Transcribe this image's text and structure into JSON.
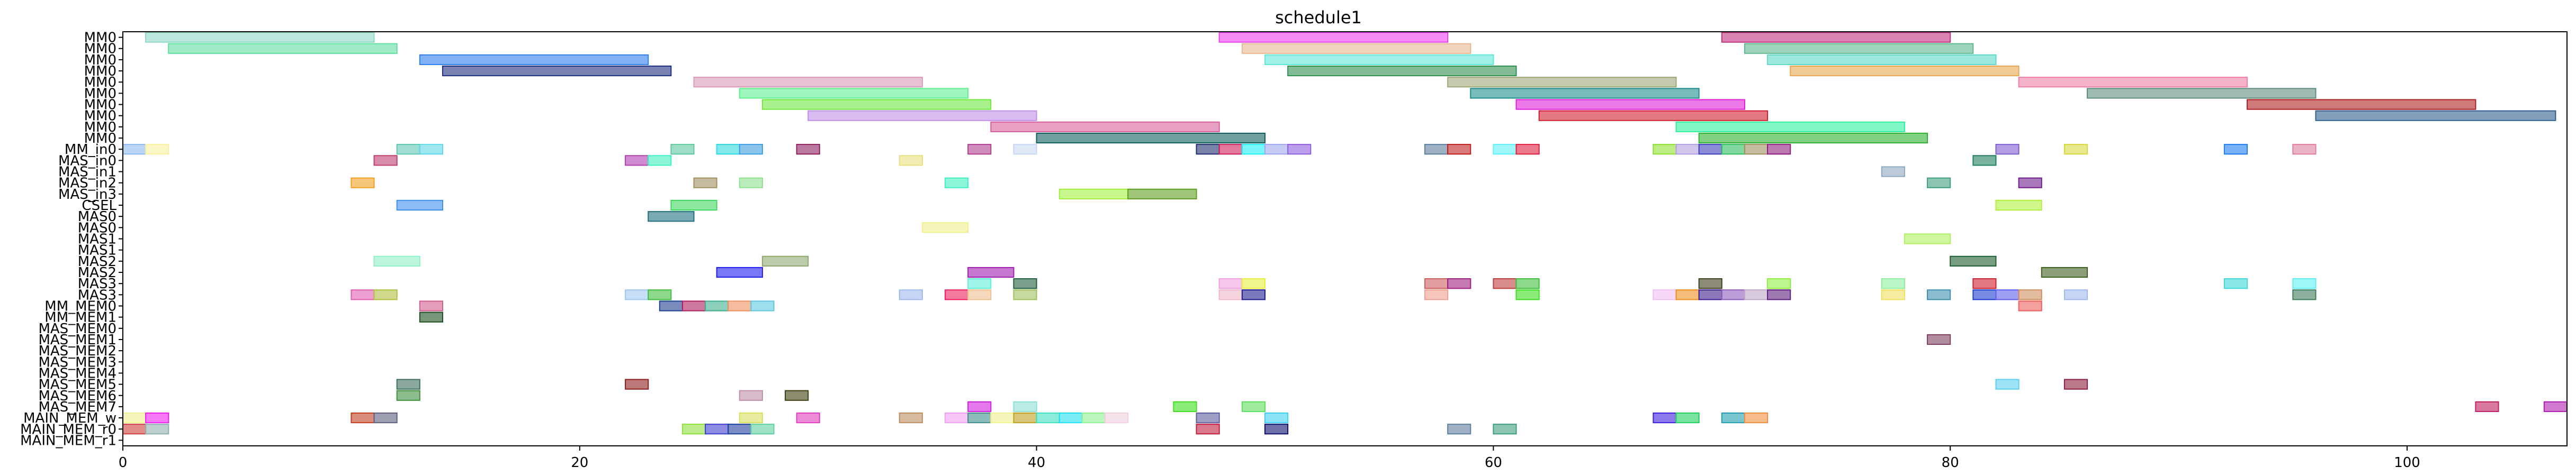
{
  "chart_data": {
    "type": "gantt",
    "title": "schedule1",
    "xlim": [
      0,
      107
    ],
    "xticks": [
      0,
      20,
      40,
      60,
      80,
      100
    ],
    "xlabel": "",
    "ylabel": "",
    "rows": [
      "MM0",
      "MM0",
      "MM0",
      "MM0",
      "MM0",
      "MM0",
      "MM0",
      "MM0",
      "MM0",
      "MM0",
      "MM_in0",
      "MAS_in0",
      "MAS_in1",
      "MAS_in2",
      "MAS_in3",
      "CSEL",
      "MAS0",
      "MAS0",
      "MAS1",
      "MAS1",
      "MAS2",
      "MAS2",
      "MAS3",
      "MAS3",
      "MM_MEM0",
      "MM_MEM1",
      "MAS_MEM0",
      "MAS_MEM1",
      "MAS_MEM2",
      "MAS_MEM3",
      "MAS_MEM4",
      "MAS_MEM5",
      "MAS_MEM6",
      "MAS_MEM7",
      "MAIN_MEM_w",
      "MAIN_MEM_r0",
      "MAIN_MEM_r1"
    ],
    "bars": [
      {
        "row": 0,
        "start": 1.0,
        "end": 11.0,
        "color": "#8fd8c8"
      },
      {
        "row": 1,
        "start": 2.0,
        "end": 12.0,
        "color": "#5fe0a0"
      },
      {
        "row": 2,
        "start": 13.0,
        "end": 23.0,
        "color": "#2f7ff0"
      },
      {
        "row": 3,
        "start": 14.0,
        "end": 24.0,
        "color": "#1f2f7f"
      },
      {
        "row": 4,
        "start": 25.0,
        "end": 35.0,
        "color": "#d89ab8"
      },
      {
        "row": 5,
        "start": 27.0,
        "end": 37.0,
        "color": "#5ff08f"
      },
      {
        "row": 6,
        "start": 28.0,
        "end": 38.0,
        "color": "#6fe83f"
      },
      {
        "row": 7,
        "start": 30.0,
        "end": 40.0,
        "color": "#c08fe8"
      },
      {
        "row": 8,
        "start": 38.0,
        "end": 48.0,
        "color": "#d8609f"
      },
      {
        "row": 9,
        "start": 40.0,
        "end": 50.0,
        "color": "#0f5f5f"
      },
      {
        "row": 0,
        "start": 48.0,
        "end": 58.0,
        "color": "#f03ff0"
      },
      {
        "row": 1,
        "start": 49.0,
        "end": 59.0,
        "color": "#e8b890"
      },
      {
        "row": 2,
        "start": 50.0,
        "end": 60.0,
        "color": "#5fe8d8"
      },
      {
        "row": 3,
        "start": 51.0,
        "end": 61.0,
        "color": "#2f8f4f"
      },
      {
        "row": 4,
        "start": 58.0,
        "end": 68.0,
        "color": "#a0a878"
      },
      {
        "row": 5,
        "start": 59.0,
        "end": 69.0,
        "color": "#1f8f8f"
      },
      {
        "row": 6,
        "start": 61.0,
        "end": 71.0,
        "color": "#e020d8"
      },
      {
        "row": 7,
        "start": 62.0,
        "end": 72.0,
        "color": "#d01f2f"
      },
      {
        "row": 8,
        "start": 68.0,
        "end": 78.0,
        "color": "#2ff0a0"
      },
      {
        "row": 9,
        "start": 69.0,
        "end": 79.0,
        "color": "#2fb02f"
      },
      {
        "row": 0,
        "start": 70.0,
        "end": 80.0,
        "color": "#c0307f"
      },
      {
        "row": 1,
        "start": 71.0,
        "end": 81.0,
        "color": "#5fb88f"
      },
      {
        "row": 2,
        "start": 72.0,
        "end": 82.0,
        "color": "#5fd8c8"
      },
      {
        "row": 3,
        "start": 73.0,
        "end": 83.0,
        "color": "#e8a850"
      },
      {
        "row": 4,
        "start": 83.0,
        "end": 93.0,
        "color": "#f07fa8"
      },
      {
        "row": 5,
        "start": 86.0,
        "end": 96.0,
        "color": "#5f8f7f"
      },
      {
        "row": 6,
        "start": 93.0,
        "end": 103.0,
        "color": "#b01f1f"
      },
      {
        "row": 7,
        "start": 96.0,
        "end": 106.5,
        "color": "#2f5f8f"
      },
      {
        "row": 10,
        "start": 0.0,
        "end": 1.0,
        "color": "#8fb8f0"
      },
      {
        "row": 10,
        "start": 1.0,
        "end": 2.0,
        "color": "#f8f0a0"
      },
      {
        "row": 10,
        "start": 12.0,
        "end": 13.0,
        "color": "#5fc8b0"
      },
      {
        "row": 10,
        "start": 13.0,
        "end": 14.0,
        "color": "#5fd8e8"
      },
      {
        "row": 10,
        "start": 24.0,
        "end": 25.0,
        "color": "#5fc8a0"
      },
      {
        "row": 10,
        "start": 26.0,
        "end": 27.0,
        "color": "#2fd8e0"
      },
      {
        "row": 10,
        "start": 27.0,
        "end": 28.0,
        "color": "#3f9fe0"
      },
      {
        "row": 10,
        "start": 29.5,
        "end": 30.5,
        "color": "#8f1f5f"
      },
      {
        "row": 10,
        "start": 37.0,
        "end": 38.0,
        "color": "#b03f8f"
      },
      {
        "row": 10,
        "start": 39.0,
        "end": 40.0,
        "color": "#c8d8f0"
      },
      {
        "row": 10,
        "start": 47.0,
        "end": 48.0,
        "color": "#1f2f6f"
      },
      {
        "row": 10,
        "start": 48.0,
        "end": 49.0,
        "color": "#d01f5f"
      },
      {
        "row": 10,
        "start": 49.0,
        "end": 50.0,
        "color": "#1ff0f8"
      },
      {
        "row": 10,
        "start": 50.0,
        "end": 51.0,
        "color": "#a0a8f0"
      },
      {
        "row": 10,
        "start": 51.0,
        "end": 52.0,
        "color": "#8f5fe0"
      },
      {
        "row": 10,
        "start": 57.0,
        "end": 58.0,
        "color": "#5f7f9f"
      },
      {
        "row": 10,
        "start": 58.0,
        "end": 59.0,
        "color": "#c01f1f"
      },
      {
        "row": 10,
        "start": 60.0,
        "end": 61.0,
        "color": "#5ff0f8"
      },
      {
        "row": 10,
        "start": 61.0,
        "end": 62.0,
        "color": "#e01f3f"
      },
      {
        "row": 10,
        "start": 67.0,
        "end": 68.0,
        "color": "#8fe02f"
      },
      {
        "row": 10,
        "start": 68.0,
        "end": 69.0,
        "color": "#b0a0e0"
      },
      {
        "row": 10,
        "start": 69.0,
        "end": 70.0,
        "color": "#3f3fc0"
      },
      {
        "row": 10,
        "start": 70.0,
        "end": 71.0,
        "color": "#2fc05f"
      },
      {
        "row": 10,
        "start": 71.0,
        "end": 72.0,
        "color": "#a08f5f"
      },
      {
        "row": 10,
        "start": 72.0,
        "end": 73.0,
        "color": "#8f1f7f"
      },
      {
        "row": 10,
        "start": 82.0,
        "end": 83.0,
        "color": "#7f5fd0"
      },
      {
        "row": 10,
        "start": 85.0,
        "end": 86.0,
        "color": "#d8d83f"
      },
      {
        "row": 10,
        "start": 92.0,
        "end": 93.0,
        "color": "#1f7ff0"
      },
      {
        "row": 10,
        "start": 95.0,
        "end": 96.0,
        "color": "#e07fa0"
      },
      {
        "row": 11,
        "start": 11.0,
        "end": 12.0,
        "color": "#c03f6f"
      },
      {
        "row": 11,
        "start": 22.0,
        "end": 23.0,
        "color": "#b03fb0"
      },
      {
        "row": 11,
        "start": 23.0,
        "end": 24.0,
        "color": "#3ff0c0"
      },
      {
        "row": 11,
        "start": 34.0,
        "end": 35.0,
        "color": "#e8e07f"
      },
      {
        "row": 11,
        "start": 81.0,
        "end": 82.0,
        "color": "#1f7f5f"
      },
      {
        "row": 12,
        "start": 77.0,
        "end": 78.0,
        "color": "#8fa8c0"
      },
      {
        "row": 13,
        "start": 10.0,
        "end": 11.0,
        "color": "#f0a020"
      },
      {
        "row": 13,
        "start": 25.0,
        "end": 26.0,
        "color": "#a08f5f"
      },
      {
        "row": 13,
        "start": 27.0,
        "end": 28.0,
        "color": "#8fe08f"
      },
      {
        "row": 13,
        "start": 36.0,
        "end": 37.0,
        "color": "#3ff0c0"
      },
      {
        "row": 13,
        "start": 79.0,
        "end": 80.0,
        "color": "#3f9f7f"
      },
      {
        "row": 13,
        "start": 83.0,
        "end": 84.0,
        "color": "#6f1f8f"
      },
      {
        "row": 14,
        "start": 41.0,
        "end": 44.0,
        "color": "#a0f03f"
      },
      {
        "row": 14,
        "start": 44.0,
        "end": 47.0,
        "color": "#5f9f1f"
      },
      {
        "row": 15,
        "start": 12.0,
        "end": 14.0,
        "color": "#3f8ff0"
      },
      {
        "row": 15,
        "start": 24.0,
        "end": 26.0,
        "color": "#3fd85f"
      },
      {
        "row": 15,
        "start": 82.0,
        "end": 84.0,
        "color": "#b0f03f"
      },
      {
        "row": 16,
        "start": 23.0,
        "end": 25.0,
        "color": "#1f6f7f"
      },
      {
        "row": 17,
        "start": 35.0,
        "end": 37.0,
        "color": "#f0f08f"
      },
      {
        "row": 18,
        "start": 78.0,
        "end": 80.0,
        "color": "#b0f05f"
      },
      {
        "row": 20,
        "start": 11.0,
        "end": 13.0,
        "color": "#8ff0c8"
      },
      {
        "row": 20,
        "start": 28.0,
        "end": 30.0,
        "color": "#8fa86f"
      },
      {
        "row": 21,
        "start": 26.0,
        "end": 28.0,
        "color": "#1f1ff0"
      },
      {
        "row": 21,
        "start": 37.0,
        "end": 39.0,
        "color": "#a01fb0"
      },
      {
        "row": 20,
        "start": 80.0,
        "end": 82.0,
        "color": "#1f5f2f"
      },
      {
        "row": 21,
        "start": 84.0,
        "end": 86.0,
        "color": "#3f5f1f"
      },
      {
        "row": 22,
        "start": 37.0,
        "end": 38.0,
        "color": "#5ff0d8"
      },
      {
        "row": 22,
        "start": 39.0,
        "end": 40.0,
        "color": "#1f5f3f"
      },
      {
        "row": 22,
        "start": 48.0,
        "end": 49.0,
        "color": "#f0a0e0"
      },
      {
        "row": 22,
        "start": 49.0,
        "end": 50.0,
        "color": "#e8f03f"
      },
      {
        "row": 22,
        "start": 57.0,
        "end": 58.0,
        "color": "#d05f5f"
      },
      {
        "row": 22,
        "start": 58.0,
        "end": 59.0,
        "color": "#a01f7f"
      },
      {
        "row": 22,
        "start": 60.0,
        "end": 61.0,
        "color": "#c03f3f"
      },
      {
        "row": 22,
        "start": 61.0,
        "end": 62.0,
        "color": "#3fc03f"
      },
      {
        "row": 22,
        "start": 69.0,
        "end": 70.0,
        "color": "#3f3f1f"
      },
      {
        "row": 22,
        "start": 72.0,
        "end": 73.0,
        "color": "#8ff03f"
      },
      {
        "row": 22,
        "start": 77.0,
        "end": 78.0,
        "color": "#8ff0a0"
      },
      {
        "row": 22,
        "start": 81.0,
        "end": 82.0,
        "color": "#d01f2f"
      },
      {
        "row": 22,
        "start": 92.0,
        "end": 93.0,
        "color": "#3fd8d8"
      },
      {
        "row": 22,
        "start": 95.0,
        "end": 96.0,
        "color": "#5ff0f0"
      },
      {
        "row": 23,
        "start": 10.0,
        "end": 11.0,
        "color": "#e05fb0"
      },
      {
        "row": 23,
        "start": 11.0,
        "end": 12.0,
        "color": "#b0c03f"
      },
      {
        "row": 23,
        "start": 22.0,
        "end": 23.0,
        "color": "#a0c8f0"
      },
      {
        "row": 23,
        "start": 23.0,
        "end": 24.0,
        "color": "#3fc03f"
      },
      {
        "row": 23,
        "start": 34.0,
        "end": 35.0,
        "color": "#a0b8f0"
      },
      {
        "row": 23,
        "start": 36.0,
        "end": 37.0,
        "color": "#f01f5f"
      },
      {
        "row": 23,
        "start": 37.0,
        "end": 38.0,
        "color": "#f0c08f"
      },
      {
        "row": 23,
        "start": 39.0,
        "end": 40.0,
        "color": "#a0c05f"
      },
      {
        "row": 23,
        "start": 48.0,
        "end": 49.0,
        "color": "#f0b8c8"
      },
      {
        "row": 23,
        "start": 49.0,
        "end": 50.0,
        "color": "#1f1f8f"
      },
      {
        "row": 23,
        "start": 57.0,
        "end": 58.0,
        "color": "#f0a08f"
      },
      {
        "row": 23,
        "start": 61.0,
        "end": 62.0,
        "color": "#3fe01f"
      },
      {
        "row": 23,
        "start": 67.0,
        "end": 68.0,
        "color": "#f0c0f0"
      },
      {
        "row": 23,
        "start": 68.0,
        "end": 69.0,
        "color": "#f08f1f"
      },
      {
        "row": 23,
        "start": 69.0,
        "end": 70.0,
        "color": "#3f1f8f"
      },
      {
        "row": 23,
        "start": 70.0,
        "end": 71.0,
        "color": "#8f5fc0"
      },
      {
        "row": 23,
        "start": 71.0,
        "end": 72.0,
        "color": "#c0a8c8"
      },
      {
        "row": 23,
        "start": 72.0,
        "end": 73.0,
        "color": "#5f1f7f"
      },
      {
        "row": 23,
        "start": 77.0,
        "end": 78.0,
        "color": "#f0e05f"
      },
      {
        "row": 23,
        "start": 79.0,
        "end": 80.0,
        "color": "#3f8fb0"
      },
      {
        "row": 23,
        "start": 81.0,
        "end": 82.0,
        "color": "#1f3fd0"
      },
      {
        "row": 23,
        "start": 82.0,
        "end": 83.0,
        "color": "#5f5ff0"
      },
      {
        "row": 23,
        "start": 83.0,
        "end": 84.0,
        "color": "#d08f5f"
      },
      {
        "row": 23,
        "start": 85.0,
        "end": 86.0,
        "color": "#a0b8f0"
      },
      {
        "row": 23,
        "start": 95.0,
        "end": 96.0,
        "color": "#3f7f5f"
      },
      {
        "row": 24,
        "start": 13.0,
        "end": 14.0,
        "color": "#d05f8f"
      },
      {
        "row": 24,
        "start": 23.5,
        "end": 24.5,
        "color": "#1f3f8f"
      },
      {
        "row": 24,
        "start": 24.5,
        "end": 25.5,
        "color": "#b01f5f"
      },
      {
        "row": 24,
        "start": 25.5,
        "end": 26.5,
        "color": "#3fb08f"
      },
      {
        "row": 24,
        "start": 26.5,
        "end": 27.5,
        "color": "#f08f5f"
      },
      {
        "row": 24,
        "start": 27.5,
        "end": 28.5,
        "color": "#5fc8e0"
      },
      {
        "row": 24,
        "start": 83.0,
        "end": 84.0,
        "color": "#f05f5f"
      },
      {
        "row": 25,
        "start": 13.0,
        "end": 14.0,
        "color": "#1f4f1f"
      },
      {
        "row": 27,
        "start": 79.0,
        "end": 80.0,
        "color": "#7f3f5f"
      },
      {
        "row": 31,
        "start": 12.0,
        "end": 13.0,
        "color": "#3f6f5f"
      },
      {
        "row": 31,
        "start": 22.0,
        "end": 23.0,
        "color": "#8f1f1f"
      },
      {
        "row": 31,
        "start": 82.0,
        "end": 83.0,
        "color": "#5fd0f0"
      },
      {
        "row": 31,
        "start": 85.0,
        "end": 86.0,
        "color": "#8f1f3f"
      },
      {
        "row": 32,
        "start": 12.0,
        "end": 13.0,
        "color": "#3f8f3f"
      },
      {
        "row": 32,
        "start": 27.0,
        "end": 28.0,
        "color": "#c08fa8"
      },
      {
        "row": 32,
        "start": 29.0,
        "end": 30.0,
        "color": "#3f3f0f"
      },
      {
        "row": 33,
        "start": 37.0,
        "end": 38.0,
        "color": "#d01fe0"
      },
      {
        "row": 33,
        "start": 39.0,
        "end": 40.0,
        "color": "#8fe0d8"
      },
      {
        "row": 33,
        "start": 46.0,
        "end": 47.0,
        "color": "#3fe01f"
      },
      {
        "row": 33,
        "start": 49.0,
        "end": 50.0,
        "color": "#5fe05f"
      },
      {
        "row": 33,
        "start": 103.0,
        "end": 104.0,
        "color": "#c01f5f"
      },
      {
        "row": 33,
        "start": 106.0,
        "end": 107.0,
        "color": "#b01fb0"
      },
      {
        "row": 34,
        "start": 0.0,
        "end": 1.0,
        "color": "#f0f08f"
      },
      {
        "row": 34,
        "start": 1.0,
        "end": 2.0,
        "color": "#f01ff0"
      },
      {
        "row": 34,
        "start": 10.0,
        "end": 11.0,
        "color": "#c03f1f"
      },
      {
        "row": 34,
        "start": 11.0,
        "end": 12.0,
        "color": "#5f5f7f"
      },
      {
        "row": 34,
        "start": 27.0,
        "end": 28.0,
        "color": "#d8e05f"
      },
      {
        "row": 34,
        "start": 29.5,
        "end": 30.5,
        "color": "#e03fc0"
      },
      {
        "row": 34,
        "start": 34.0,
        "end": 35.0,
        "color": "#c08f5f"
      },
      {
        "row": 34,
        "start": 36.0,
        "end": 37.0,
        "color": "#f0a0f0"
      },
      {
        "row": 34,
        "start": 37.0,
        "end": 38.0,
        "color": "#3f8f8f"
      },
      {
        "row": 34,
        "start": 38.0,
        "end": 39.0,
        "color": "#f0f08f"
      },
      {
        "row": 34,
        "start": 39.0,
        "end": 40.0,
        "color": "#c0a01f"
      },
      {
        "row": 34,
        "start": 40.0,
        "end": 41.0,
        "color": "#3fe0c0"
      },
      {
        "row": 34,
        "start": 41.0,
        "end": 42.0,
        "color": "#1fe0f0"
      },
      {
        "row": 34,
        "start": 42.0,
        "end": 43.0,
        "color": "#8ff08f"
      },
      {
        "row": 34,
        "start": 43.0,
        "end": 44.0,
        "color": "#f0d0e0"
      },
      {
        "row": 34,
        "start": 47.0,
        "end": 48.0,
        "color": "#5f5f9f"
      },
      {
        "row": 34,
        "start": 50.0,
        "end": 51.0,
        "color": "#3fd0f0"
      },
      {
        "row": 34,
        "start": 67.0,
        "end": 68.0,
        "color": "#3f1fe0"
      },
      {
        "row": 34,
        "start": 68.0,
        "end": 69.0,
        "color": "#1fd05f"
      },
      {
        "row": 34,
        "start": 70.0,
        "end": 71.0,
        "color": "#1f9fb0"
      },
      {
        "row": 34,
        "start": 71.0,
        "end": 72.0,
        "color": "#f08f3f"
      },
      {
        "row": 35,
        "start": 0.0,
        "end": 1.0,
        "color": "#d03f3f"
      },
      {
        "row": 35,
        "start": 1.0,
        "end": 2.0,
        "color": "#8fb0b0"
      },
      {
        "row": 35,
        "start": 24.5,
        "end": 25.5,
        "color": "#8fe03f"
      },
      {
        "row": 35,
        "start": 25.5,
        "end": 26.5,
        "color": "#3f3fd0"
      },
      {
        "row": 35,
        "start": 26.5,
        "end": 27.5,
        "color": "#1f3fa0"
      },
      {
        "row": 35,
        "start": 27.5,
        "end": 28.5,
        "color": "#5fd0a0"
      },
      {
        "row": 35,
        "start": 47.0,
        "end": 48.0,
        "color": "#c01f3f"
      },
      {
        "row": 35,
        "start": 50.0,
        "end": 51.0,
        "color": "#0f0f6f"
      },
      {
        "row": 35,
        "start": 58.0,
        "end": 59.0,
        "color": "#5f7f9f"
      },
      {
        "row": 35,
        "start": 60.0,
        "end": 61.0,
        "color": "#3f9f7f"
      }
    ]
  }
}
